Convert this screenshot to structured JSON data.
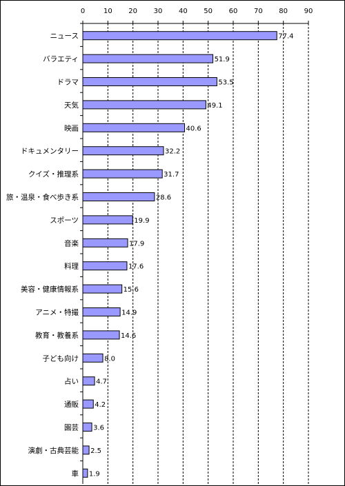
{
  "chart_data": {
    "type": "bar",
    "orientation": "horizontal",
    "categories": [
      "ニュース",
      "バラエティ",
      "ドラマ",
      "天気",
      "映画",
      "ドキュメンタリー",
      "クイズ・推理系",
      "旅・温泉・食べ歩き系",
      "スポーツ",
      "音楽",
      "料理",
      "美容・健康情報系",
      "アニメ・特撮",
      "教育・教養系",
      "子ども向け",
      "占い",
      "通販",
      "園芸",
      "演劇・古典芸能",
      "車"
    ],
    "values": [
      77.4,
      51.9,
      53.5,
      49.1,
      40.6,
      32.2,
      31.7,
      28.6,
      19.9,
      17.9,
      17.6,
      15.6,
      14.9,
      14.6,
      8.0,
      4.7,
      4.2,
      3.6,
      2.5,
      1.9
    ],
    "value_labels": [
      "77.4",
      "51.9",
      "53.5",
      "49.1",
      "40.6",
      "32.2",
      "31.7",
      "28.6",
      "19.9",
      "17.9",
      "17.6",
      "15.6",
      "14.9",
      "14.6",
      "8.0",
      "4.7",
      "4.2",
      "3.6",
      "2.5",
      "1.9"
    ],
    "x_ticks": [
      "0",
      "10",
      "20",
      "30",
      "40",
      "50",
      "60",
      "70",
      "80",
      "90"
    ],
    "xlim": [
      0,
      90
    ],
    "axis_position": "top",
    "grid": "vertical dashed",
    "bar_color": "#9999FF",
    "bar_edge_color": "#000000"
  }
}
